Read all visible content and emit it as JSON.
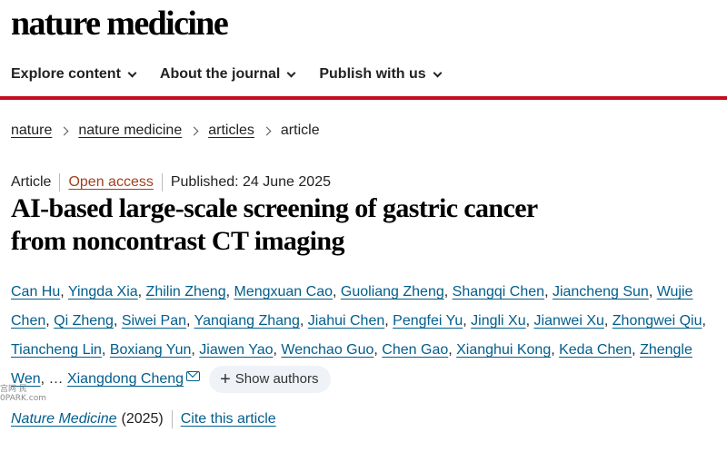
{
  "header": {
    "logo": "nature medicine"
  },
  "nav": {
    "items": [
      {
        "label": "Explore content"
      },
      {
        "label": "About the journal"
      },
      {
        "label": "Publish with us"
      }
    ],
    "accent_color": "#c40d20"
  },
  "breadcrumb": {
    "items": [
      "nature",
      "nature medicine",
      "articles"
    ],
    "current": "article"
  },
  "article": {
    "type": "Article",
    "access": "Open access",
    "published": "Published: 24 June 2025",
    "title_line1": "AI-based large-scale screening of gastric cancer",
    "title_line2": "from noncontrast CT imaging",
    "authors": [
      "Can Hu",
      "Yingda Xia",
      "Zhilin Zheng",
      "Mengxuan Cao",
      "Guoliang Zheng",
      "Shangqi Chen",
      "Jiancheng Sun",
      "Wujie Chen",
      "Qi Zheng",
      "Siwei Pan",
      "Yanqiang Zhang",
      "Jiahui Chen",
      "Pengfei Yu",
      "Jingli Xu",
      "Jianwei Xu",
      "Zhongwei Qiu",
      "Tiancheng Lin",
      "Boxiang Yun",
      "Jiawen Yao",
      "Wenchao Guo",
      "Chen Gao",
      "Xianghui Kong",
      "Keda Chen",
      "Zhengle Wen"
    ],
    "ellipsis": "…",
    "corresponding_author": "Xiangdong Cheng",
    "show_authors_label": "Show authors",
    "journal": "Nature Medicine",
    "year": "(2025)",
    "cite_label": "Cite this article",
    "link_color": "#025e8d"
  },
  "watermark": {
    "line1": "宫网 民",
    "line2": "0PARK.com"
  }
}
